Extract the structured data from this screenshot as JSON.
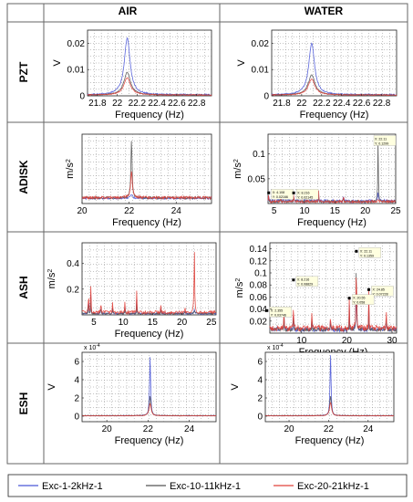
{
  "headers": {
    "col1": "AIR",
    "col2": "WATER"
  },
  "rows": [
    "PZT",
    "ADISK",
    "ASH",
    "ESH"
  ],
  "legend": {
    "entries": [
      {
        "label": "Exc-1-2kHz-1",
        "color": "#4a57d8"
      },
      {
        "label": "Exc-10-11kHz-1",
        "color": "#555555"
      },
      {
        "label": "Exc-20-21kHz-1",
        "color": "#e0403a"
      }
    ]
  },
  "chart_data": [
    {
      "id": "pzt-air",
      "type": "line",
      "row": "PZT",
      "column": "AIR",
      "xlabel": "Frequency (Hz)",
      "ylabel": "V",
      "y_multiplier": "",
      "xlim": [
        21.7,
        22.95
      ],
      "ylim": [
        0,
        0.025
      ],
      "xticks": [
        21.8,
        22,
        22.2,
        22.4,
        22.6,
        22.8
      ],
      "xtick_labels": [
        "21.8",
        "22",
        "22.2",
        "22.4",
        "22.6",
        "22.8"
      ],
      "yticks": [
        0,
        0.01,
        0.02
      ],
      "ytick_labels": [
        "0",
        "0.01",
        "0.02"
      ],
      "peak_x": 22.1,
      "series": [
        {
          "name": "Exc-1-2kHz-1",
          "peak": 0.022,
          "base": 0.0004,
          "width": 0.035
        },
        {
          "name": "Exc-10-11kHz-1",
          "peak": 0.009,
          "base": 0.0003,
          "width": 0.04
        },
        {
          "name": "Exc-20-21kHz-1",
          "peak": 0.007,
          "base": 0.0003,
          "width": 0.04
        }
      ],
      "annotations": []
    },
    {
      "id": "pzt-water",
      "type": "line",
      "row": "PZT",
      "column": "WATER",
      "xlabel": "Frequency (Hz)",
      "ylabel": "V",
      "y_multiplier": "",
      "xlim": [
        21.7,
        22.95
      ],
      "ylim": [
        0,
        0.025
      ],
      "xticks": [
        21.8,
        22,
        22.2,
        22.4,
        22.6,
        22.8
      ],
      "xtick_labels": [
        "21.8",
        "22",
        "22.2",
        "22.4",
        "22.6",
        "22.8"
      ],
      "yticks": [
        0,
        0.01,
        0.02
      ],
      "ytick_labels": [
        "0",
        "0.01",
        "0.02"
      ],
      "peak_x": 22.1,
      "series": [
        {
          "name": "Exc-1-2kHz-1",
          "peak": 0.02,
          "base": 0.0004,
          "width": 0.035
        },
        {
          "name": "Exc-10-11kHz-1",
          "peak": 0.008,
          "base": 0.0003,
          "width": 0.04
        },
        {
          "name": "Exc-20-21kHz-1",
          "peak": 0.0065,
          "base": 0.0003,
          "width": 0.04
        }
      ],
      "annotations": []
    },
    {
      "id": "adisk-air",
      "type": "line",
      "row": "ADISK",
      "column": "AIR",
      "xlabel": "Frequency (Hz)",
      "ylabel": "m/s2",
      "y_multiplier": "",
      "xlim": [
        20,
        25.5
      ],
      "ylim": [
        -0.2,
        3.5
      ],
      "xticks": [
        20,
        22,
        24
      ],
      "xtick_labels": [
        "20",
        "22",
        "24"
      ],
      "yticks": [],
      "ytick_labels": [],
      "peak_x": 22.1,
      "series": [
        {
          "name": "Exc-1-2kHz-1",
          "peak": 0.3,
          "base": 0.08,
          "width": 0.05
        },
        {
          "name": "Exc-10-11kHz-1",
          "peak": 3.2,
          "base": 0.1,
          "width": 0.03
        },
        {
          "name": "Exc-20-21kHz-1",
          "peak": 1.6,
          "base": 0.12,
          "width": 0.04
        }
      ],
      "annotations": []
    },
    {
      "id": "adisk-water",
      "type": "line",
      "row": "ADISK",
      "column": "WATER",
      "xlabel": "Frequency (Hz)",
      "ylabel": "m/s2",
      "y_multiplier": "",
      "xlim": [
        4,
        25
      ],
      "ylim": [
        0,
        0.14
      ],
      "xticks": [
        5,
        10,
        15,
        20,
        25
      ],
      "xtick_labels": [
        "5",
        "10",
        "15",
        "20",
        "25"
      ],
      "yticks": [
        0.05,
        0.1
      ],
      "ytick_labels": [
        "0.05",
        "0.1"
      ],
      "peak_x": 22.1,
      "series": [
        {
          "name": "Exc-1-2kHz-1",
          "peak": 0.02,
          "base": 0.005,
          "width": 0.1
        },
        {
          "name": "Exc-10-11kHz-1",
          "peak": 0.1299,
          "base": 0.004,
          "width": 0.05
        },
        {
          "name": "Exc-20-21kHz-1",
          "peak": 0.01,
          "base": 0.004,
          "width": 0.1
        }
      ],
      "annotations": [
        {
          "x": 22.11,
          "y": 0.1299,
          "lines": [
            "X: 22.11",
            "Y: 0.1299"
          ]
        },
        {
          "x": 4.108,
          "y": 0.02166,
          "lines": [
            "X: 4.108",
            "Y: 0.02166"
          ]
        },
        {
          "x": 8.216,
          "y": 0.02145,
          "lines": [
            "X: 8.216",
            "Y: 0.02145"
          ]
        }
      ]
    },
    {
      "id": "ash-air",
      "type": "line",
      "row": "ASH",
      "column": "AIR",
      "xlabel": "Frequency (Hz)",
      "ylabel": "m/s2",
      "y_multiplier": "",
      "xlim": [
        3,
        25.8
      ],
      "ylim": [
        0,
        0.56
      ],
      "xticks": [
        5,
        10,
        15,
        20,
        25
      ],
      "xtick_labels": [
        "5",
        "10",
        "15",
        "20",
        "25"
      ],
      "yticks": [
        0.2,
        0.4
      ],
      "ytick_labels": [
        "0.2",
        "0.4"
      ],
      "peak_x": 22.1,
      "series": [
        {
          "name": "Exc-1-2kHz-1",
          "peak": 0.04,
          "base": 0.01,
          "width": 0.1
        },
        {
          "name": "Exc-10-11kHz-1",
          "peak": 0.03,
          "base": 0.01,
          "width": 0.1
        },
        {
          "name": "Exc-20-21kHz-1",
          "peak": 0.53,
          "base": 0.02,
          "width": 0.06
        }
      ],
      "annotations": []
    },
    {
      "id": "ash-water",
      "type": "line",
      "row": "ASH",
      "column": "WATER",
      "xlabel": "Frequency (Hz)",
      "ylabel": "m/s2",
      "y_multiplier": "",
      "xlim": [
        3,
        31
      ],
      "ylim": [
        0,
        0.15
      ],
      "xticks": [
        10,
        20,
        30
      ],
      "xtick_labels": [
        "10",
        "20",
        "30"
      ],
      "yticks": [
        0.02,
        0.04,
        0.06,
        0.08,
        0.1,
        0.12,
        0.14
      ],
      "ytick_labels": [
        "0.02",
        "0.04",
        "0.06",
        "0.08",
        "0.1",
        "0.12",
        "0.14"
      ],
      "peak_x": 22.1,
      "series": [
        {
          "name": "Exc-1-2kHz-1",
          "peak": 0.06,
          "base": 0.006,
          "width": 0.1
        },
        {
          "name": "Exc-10-11kHz-1",
          "peak": 0.1359,
          "base": 0.006,
          "width": 0.06
        },
        {
          "name": "Exc-20-21kHz-1",
          "peak": 0.11,
          "base": 0.008,
          "width": 0.08
        }
      ],
      "annotations": [
        {
          "x": 22.11,
          "y": 0.1359,
          "lines": [
            "X: 22.11",
            "Y: 0.1359"
          ]
        },
        {
          "x": 8.216,
          "y": 0.08829,
          "lines": [
            "X: 8.216",
            "Y: 0.08829"
          ]
        },
        {
          "x": 24.85,
          "y": 0.07228,
          "lines": [
            "X: 24.85",
            "Y: 0.07228"
          ]
        },
        {
          "x": 20.55,
          "y": 0.058,
          "lines": [
            "X: 20.55",
            "Y: 0.058"
          ]
        },
        {
          "x": 2.355,
          "y": 0.03746,
          "lines": [
            "X: 2.355",
            "Y: 0.03746"
          ]
        }
      ]
    },
    {
      "id": "esh-air",
      "type": "line",
      "row": "ESH",
      "column": "AIR",
      "xlabel": "Frequency (Hz)",
      "ylabel": "V",
      "y_multiplier": "x 10-4",
      "xlim": [
        18.8,
        25.3
      ],
      "ylim": [
        -0.6,
        7
      ],
      "xticks": [
        20,
        22,
        24
      ],
      "xtick_labels": [
        "20",
        "22",
        "24"
      ],
      "yticks": [
        0,
        2,
        4,
        6
      ],
      "ytick_labels": [
        "0",
        "2",
        "4",
        "6"
      ],
      "peak_x": 22.1,
      "series": [
        {
          "name": "Exc-1-2kHz-1",
          "peak": 6.5,
          "base": 0.05,
          "width": 0.03
        },
        {
          "name": "Exc-10-11kHz-1",
          "peak": 2.2,
          "base": 0.05,
          "width": 0.05
        },
        {
          "name": "Exc-20-21kHz-1",
          "peak": 1.4,
          "base": 0.05,
          "width": 0.06
        }
      ],
      "annotations": []
    },
    {
      "id": "esh-water",
      "type": "line",
      "row": "ESH",
      "column": "WATER",
      "xlabel": "Frequency (Hz)",
      "ylabel": "V",
      "y_multiplier": "x 10-4",
      "xlim": [
        18.8,
        25.3
      ],
      "ylim": [
        -0.6,
        7
      ],
      "xticks": [
        20,
        22,
        24
      ],
      "xtick_labels": [
        "20",
        "22",
        "24"
      ],
      "yticks": [
        0,
        2,
        4,
        6
      ],
      "ytick_labels": [
        "0",
        "2",
        "4",
        "6"
      ],
      "peak_x": 22.1,
      "series": [
        {
          "name": "Exc-1-2kHz-1",
          "peak": 6.7,
          "base": 0.05,
          "width": 0.03
        },
        {
          "name": "Exc-10-11kHz-1",
          "peak": 2.2,
          "base": 0.05,
          "width": 0.05
        },
        {
          "name": "Exc-20-21kHz-1",
          "peak": 1.5,
          "base": 0.05,
          "width": 0.06
        }
      ],
      "annotations": []
    }
  ]
}
